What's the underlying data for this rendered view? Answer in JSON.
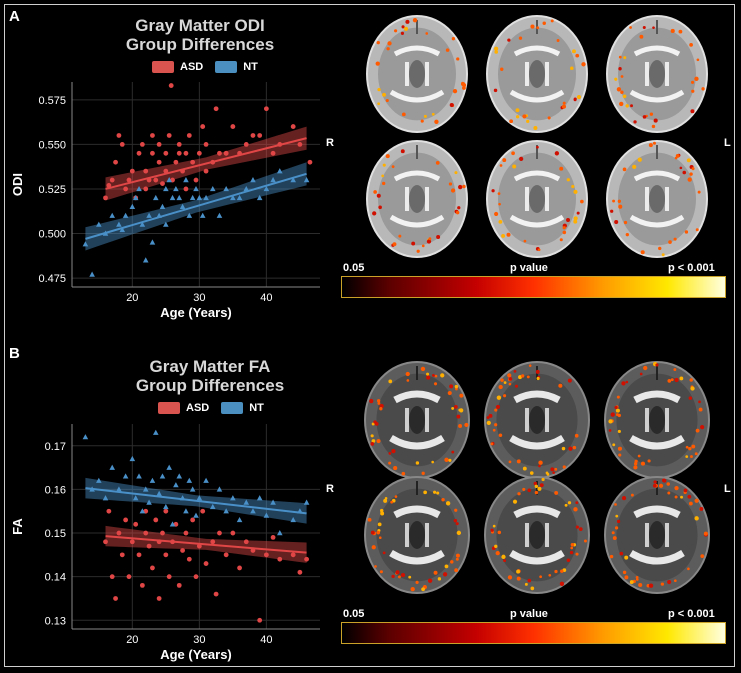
{
  "figure": {
    "panels": [
      {
        "letter": "A",
        "title_lines": [
          "Gray Matter ODI",
          "Group Differences"
        ],
        "legend": [
          {
            "label": "ASD",
            "color": "#d9534f"
          },
          {
            "label": "NT",
            "color": "#4a8fbf"
          }
        ],
        "chart_data": {
          "type": "scatter",
          "xlabel": "Age (Years)",
          "ylabel": "ODI",
          "xlim": [
            11,
            48
          ],
          "ylim": [
            0.47,
            0.585
          ],
          "x_ticks": [
            "20",
            "30",
            "40"
          ],
          "y_ticks": [
            "0.475",
            "0.500",
            "0.525",
            "0.550",
            "0.575"
          ],
          "grid": true,
          "legend_position": "top",
          "series": [
            {
              "name": "ASD",
              "color": "#e04646",
              "marker": "circle",
              "trend": {
                "x": [
                  16,
                  46
                ],
                "y": [
                  0.525,
                  0.5535
                ]
              },
              "band": 0.005,
              "points": [
                [
                  16,
                  0.52
                ],
                [
                  16.5,
                  0.527
                ],
                [
                  17,
                  0.53
                ],
                [
                  17.5,
                  0.54
                ],
                [
                  18,
                  0.555
                ],
                [
                  18.5,
                  0.55
                ],
                [
                  19,
                  0.525
                ],
                [
                  19.5,
                  0.53
                ],
                [
                  20,
                  0.535
                ],
                [
                  20.5,
                  0.52
                ],
                [
                  21,
                  0.545
                ],
                [
                  21.5,
                  0.55
                ],
                [
                  22,
                  0.525
                ],
                [
                  22,
                  0.535
                ],
                [
                  22.5,
                  0.53
                ],
                [
                  23,
                  0.545
                ],
                [
                  23,
                  0.555
                ],
                [
                  23.5,
                  0.53
                ],
                [
                  24,
                  0.54
                ],
                [
                  24,
                  0.55
                ],
                [
                  24.5,
                  0.528
                ],
                [
                  25,
                  0.535
                ],
                [
                  25,
                  0.545
                ],
                [
                  25.5,
                  0.555
                ],
                [
                  25.8,
                  0.583
                ],
                [
                  26,
                  0.53
                ],
                [
                  26.5,
                  0.54
                ],
                [
                  27,
                  0.545
                ],
                [
                  27,
                  0.55
                ],
                [
                  27.5,
                  0.535
                ],
                [
                  28,
                  0.525
                ],
                [
                  28,
                  0.545
                ],
                [
                  28.5,
                  0.555
                ],
                [
                  29,
                  0.54
                ],
                [
                  29.5,
                  0.53
                ],
                [
                  30,
                  0.545
                ],
                [
                  30.5,
                  0.56
                ],
                [
                  31,
                  0.535
                ],
                [
                  32,
                  0.54
                ],
                [
                  32.5,
                  0.57
                ],
                [
                  33,
                  0.545
                ],
                [
                  34,
                  0.545
                ],
                [
                  35,
                  0.56
                ],
                [
                  36,
                  0.545
                ],
                [
                  37,
                  0.55
                ],
                [
                  38,
                  0.555
                ],
                [
                  39,
                  0.555
                ],
                [
                  40,
                  0.57
                ],
                [
                  41,
                  0.545
                ],
                [
                  42,
                  0.55
                ],
                [
                  44,
                  0.56
                ],
                [
                  45,
                  0.55
                ],
                [
                  46.5,
                  0.54
                ],
                [
                  34,
                  0.545
                ],
                [
                  31,
                  0.55
                ]
              ]
            },
            {
              "name": "NT",
              "color": "#4a90c8",
              "marker": "triangle",
              "trend": {
                "x": [
                  13,
                  46
                ],
                "y": [
                  0.497,
                  0.5335
                ]
              },
              "band": 0.005,
              "points": [
                [
                  13,
                  0.494
                ],
                [
                  14,
                  0.477
                ],
                [
                  15,
                  0.505
                ],
                [
                  16,
                  0.5
                ],
                [
                  17,
                  0.51
                ],
                [
                  18,
                  0.505
                ],
                [
                  18.5,
                  0.502
                ],
                [
                  19,
                  0.51
                ],
                [
                  20,
                  0.515
                ],
                [
                  20.5,
                  0.52
                ],
                [
                  21,
                  0.525
                ],
                [
                  21.5,
                  0.505
                ],
                [
                  22,
                  0.485
                ],
                [
                  22.5,
                  0.51
                ],
                [
                  23,
                  0.495
                ],
                [
                  23.5,
                  0.52
                ],
                [
                  24,
                  0.51
                ],
                [
                  24.5,
                  0.515
                ],
                [
                  25,
                  0.525
                ],
                [
                  25,
                  0.505
                ],
                [
                  25.5,
                  0.53
                ],
                [
                  26,
                  0.52
                ],
                [
                  26.5,
                  0.525
                ],
                [
                  27,
                  0.52
                ],
                [
                  27.5,
                  0.515
                ],
                [
                  28,
                  0.53
                ],
                [
                  28.5,
                  0.51
                ],
                [
                  29,
                  0.52
                ],
                [
                  29.5,
                  0.525
                ],
                [
                  30,
                  0.52
                ],
                [
                  30.5,
                  0.51
                ],
                [
                  31,
                  0.52
                ],
                [
                  32,
                  0.525
                ],
                [
                  33,
                  0.51
                ],
                [
                  34,
                  0.525
                ],
                [
                  35,
                  0.52
                ],
                [
                  36,
                  0.52
                ],
                [
                  37,
                  0.525
                ],
                [
                  38,
                  0.53
                ],
                [
                  39,
                  0.52
                ],
                [
                  40,
                  0.525
                ],
                [
                  41,
                  0.53
                ],
                [
                  42,
                  0.535
                ],
                [
                  44,
                  0.53
                ],
                [
                  46,
                  0.53
                ]
              ]
            }
          ]
        },
        "side_left": "R",
        "side_right": "L",
        "colorbar": {
          "min_label": "0.05",
          "mid_label": "p value",
          "max_label": "p < 0.001"
        }
      },
      {
        "letter": "B",
        "title_lines": [
          "Gray Matter FA",
          "Group Differences"
        ],
        "legend": [
          {
            "label": "ASD",
            "color": "#d9534f"
          },
          {
            "label": "NT",
            "color": "#4a8fbf"
          }
        ],
        "chart_data": {
          "type": "scatter",
          "xlabel": "Age (Years)",
          "ylabel": "FA",
          "xlim": [
            11,
            48
          ],
          "ylim": [
            0.128,
            0.175
          ],
          "x_ticks": [
            "20",
            "30",
            "40"
          ],
          "y_ticks": [
            "0.13",
            "0.14",
            "0.15",
            "0.16",
            "0.17"
          ],
          "grid": true,
          "legend_position": "top",
          "series": [
            {
              "name": "ASD",
              "color": "#e04646",
              "marker": "circle",
              "trend": {
                "x": [
                  16,
                  46
                ],
                "y": [
                  0.1493,
                  0.1455
                ]
              },
              "band": 0.0018,
              "points": [
                [
                  16,
                  0.148
                ],
                [
                  16.5,
                  0.155
                ],
                [
                  17,
                  0.14
                ],
                [
                  17.5,
                  0.135
                ],
                [
                  18,
                  0.15
                ],
                [
                  18.5,
                  0.145
                ],
                [
                  19,
                  0.153
                ],
                [
                  19.5,
                  0.14
                ],
                [
                  20,
                  0.148
                ],
                [
                  20.5,
                  0.152
                ],
                [
                  21,
                  0.145
                ],
                [
                  21.5,
                  0.138
                ],
                [
                  22,
                  0.15
                ],
                [
                  22,
                  0.155
                ],
                [
                  22.5,
                  0.147
                ],
                [
                  23,
                  0.142
                ],
                [
                  23.5,
                  0.153
                ],
                [
                  24,
                  0.135
                ],
                [
                  24,
                  0.148
                ],
                [
                  24.5,
                  0.15
                ],
                [
                  25,
                  0.145
                ],
                [
                  25,
                  0.155
                ],
                [
                  25.5,
                  0.14
                ],
                [
                  26,
                  0.148
                ],
                [
                  26.5,
                  0.152
                ],
                [
                  27,
                  0.138
                ],
                [
                  27.5,
                  0.146
                ],
                [
                  28,
                  0.15
                ],
                [
                  28.5,
                  0.144
                ],
                [
                  29,
                  0.153
                ],
                [
                  29.5,
                  0.14
                ],
                [
                  30,
                  0.147
                ],
                [
                  30.5,
                  0.155
                ],
                [
                  31,
                  0.143
                ],
                [
                  32,
                  0.148
                ],
                [
                  32.5,
                  0.136
                ],
                [
                  33,
                  0.15
                ],
                [
                  34,
                  0.145
                ],
                [
                  35,
                  0.15
                ],
                [
                  36,
                  0.142
                ],
                [
                  37,
                  0.148
                ],
                [
                  38,
                  0.146
                ],
                [
                  39,
                  0.13
                ],
                [
                  40,
                  0.145
                ],
                [
                  41,
                  0.149
                ],
                [
                  42,
                  0.144
                ],
                [
                  44,
                  0.145
                ],
                [
                  45,
                  0.141
                ],
                [
                  46,
                  0.144
                ]
              ]
            },
            {
              "name": "NT",
              "color": "#4a90c8",
              "marker": "triangle",
              "trend": {
                "x": [
                  13,
                  46
                ],
                "y": [
                  0.1603,
                  0.1545
                ]
              },
              "band": 0.0018,
              "points": [
                [
                  13,
                  0.172
                ],
                [
                  14,
                  0.16
                ],
                [
                  15,
                  0.162
                ],
                [
                  16,
                  0.158
                ],
                [
                  17,
                  0.165
                ],
                [
                  18,
                  0.16
                ],
                [
                  19,
                  0.163
                ],
                [
                  20,
                  0.167
                ],
                [
                  20.5,
                  0.158
                ],
                [
                  21,
                  0.163
                ],
                [
                  21.5,
                  0.155
                ],
                [
                  22,
                  0.16
                ],
                [
                  22.5,
                  0.157
                ],
                [
                  23,
                  0.162
                ],
                [
                  23.5,
                  0.173
                ],
                [
                  24,
                  0.159
                ],
                [
                  24.5,
                  0.163
                ],
                [
                  25,
                  0.156
                ],
                [
                  25.5,
                  0.165
                ],
                [
                  26,
                  0.152
                ],
                [
                  26.5,
                  0.161
                ],
                [
                  27,
                  0.163
                ],
                [
                  27.5,
                  0.158
                ],
                [
                  28,
                  0.155
                ],
                [
                  28.5,
                  0.162
                ],
                [
                  29,
                  0.16
                ],
                [
                  29.5,
                  0.154
                ],
                [
                  30,
                  0.158
                ],
                [
                  31,
                  0.162
                ],
                [
                  32,
                  0.156
                ],
                [
                  33,
                  0.16
                ],
                [
                  34,
                  0.155
                ],
                [
                  35,
                  0.158
                ],
                [
                  36,
                  0.153
                ],
                [
                  37,
                  0.157
                ],
                [
                  38,
                  0.155
                ],
                [
                  39,
                  0.158
                ],
                [
                  40,
                  0.154
                ],
                [
                  41,
                  0.157
                ],
                [
                  42,
                  0.15
                ],
                [
                  44,
                  0.153
                ],
                [
                  45,
                  0.155
                ],
                [
                  46,
                  0.157
                ]
              ]
            }
          ]
        },
        "side_left": "R",
        "side_right": "L",
        "colorbar": {
          "min_label": "0.05",
          "mid_label": "p value",
          "max_label": "p < 0.001"
        }
      }
    ]
  }
}
